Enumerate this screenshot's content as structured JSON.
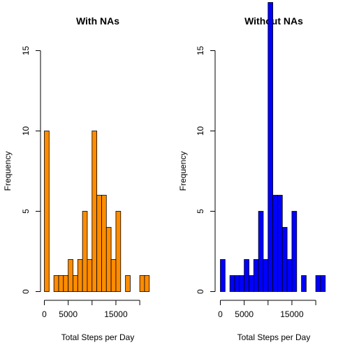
{
  "chart_data": [
    {
      "type": "bar",
      "title": "With NAs",
      "xlabel": "Total Steps per Day",
      "ylabel": "Frequency",
      "fill_color": "#FF8C00",
      "bin_width": 1000,
      "bin_start": 0,
      "xlim": [
        0,
        22000
      ],
      "ylim": [
        0,
        15
      ],
      "x_ticks": [
        0,
        5000,
        10000,
        15000,
        20000
      ],
      "x_tick_labels": [
        "0",
        "5000",
        "",
        "15000",
        ""
      ],
      "y_ticks": [
        0,
        5,
        10,
        15
      ],
      "y_tick_labels": [
        "0",
        "5",
        "10",
        "15"
      ],
      "values": [
        10,
        0,
        1,
        1,
        1,
        2,
        1,
        2,
        5,
        2,
        10,
        6,
        6,
        4,
        2,
        5,
        0,
        1,
        0,
        0,
        1,
        1
      ]
    },
    {
      "type": "bar",
      "title": "Without NAs",
      "xlabel": "Total Steps per Day",
      "ylabel": "Frequency",
      "fill_color": "#0000FF",
      "bin_width": 1000,
      "bin_start": 0,
      "xlim": [
        0,
        22000
      ],
      "ylim": [
        0,
        15
      ],
      "x_ticks": [
        0,
        5000,
        10000,
        15000,
        20000
      ],
      "x_tick_labels": [
        "0",
        "5000",
        "",
        "15000",
        ""
      ],
      "y_ticks": [
        0,
        5,
        10,
        15
      ],
      "y_tick_labels": [
        "0",
        "5",
        "10",
        "15"
      ],
      "values": [
        2,
        0,
        1,
        1,
        1,
        2,
        1,
        2,
        5,
        2,
        18,
        6,
        6,
        4,
        2,
        5,
        0,
        1,
        0,
        0,
        1,
        1
      ]
    }
  ]
}
